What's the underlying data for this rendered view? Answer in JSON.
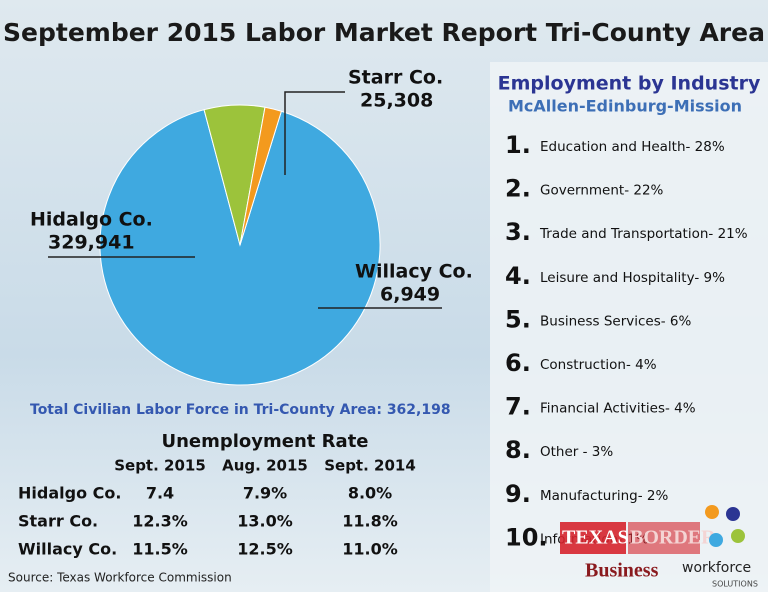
{
  "title": "September 2015 Labor Market Report Tri-County Area",
  "chart_data": {
    "type": "pie",
    "categories": [
      "Hidalgo Co.",
      "Starr Co.",
      "Willacy Co."
    ],
    "values": [
      329941,
      25308,
      6949
    ],
    "value_labels": [
      "329,941",
      "25,308",
      "6,949"
    ],
    "colors": [
      "#3fa9e0",
      "#9cc33b",
      "#f39a1e"
    ]
  },
  "industry": {
    "title": "Employment by Industry",
    "subtitle": "McAllen-Edinburg-Mission",
    "items": [
      {
        "rank": "1.",
        "label": "Education and Health- 28%"
      },
      {
        "rank": "2.",
        "label": "Government- 22%"
      },
      {
        "rank": "3.",
        "label": "Trade and Transportation- 21%"
      },
      {
        "rank": "4.",
        "label": "Leisure and Hospitality- 9%"
      },
      {
        "rank": "5.",
        "label": "Business Services- 6%"
      },
      {
        "rank": "6.",
        "label": "Construction- 4%"
      },
      {
        "rank": "7.",
        "label": "Financial Activities- 4%"
      },
      {
        "rank": "8.",
        "label": "Other - 3%"
      },
      {
        "rank": "9.",
        "label": "Manufacturing- 2%"
      },
      {
        "rank": "10.",
        "label": "Information- 1%"
      }
    ]
  },
  "labor_force": "Total Civilian Labor Force in Tri-County Area: 362,198",
  "unemployment": {
    "title": "Unemployment Rate",
    "columns": [
      "Sept. 2015",
      "Aug. 2015",
      "Sept. 2014"
    ],
    "rows": [
      {
        "label": "Hidalgo Co.",
        "values": [
          "7.4",
          "7.9%",
          "8.0%"
        ]
      },
      {
        "label": "Starr Co.",
        "values": [
          "12.3%",
          "13.0%",
          "11.8%"
        ]
      },
      {
        "label": "Willacy Co.",
        "values": [
          "11.5%",
          "12.5%",
          "11.0%"
        ]
      }
    ]
  },
  "source": "Source: Texas Workforce Commission",
  "logos": {
    "texas": "TEXAS",
    "border": "BORDER",
    "business": "Business",
    "workforce": "workforce",
    "solutions": "SOLUTIONS"
  }
}
